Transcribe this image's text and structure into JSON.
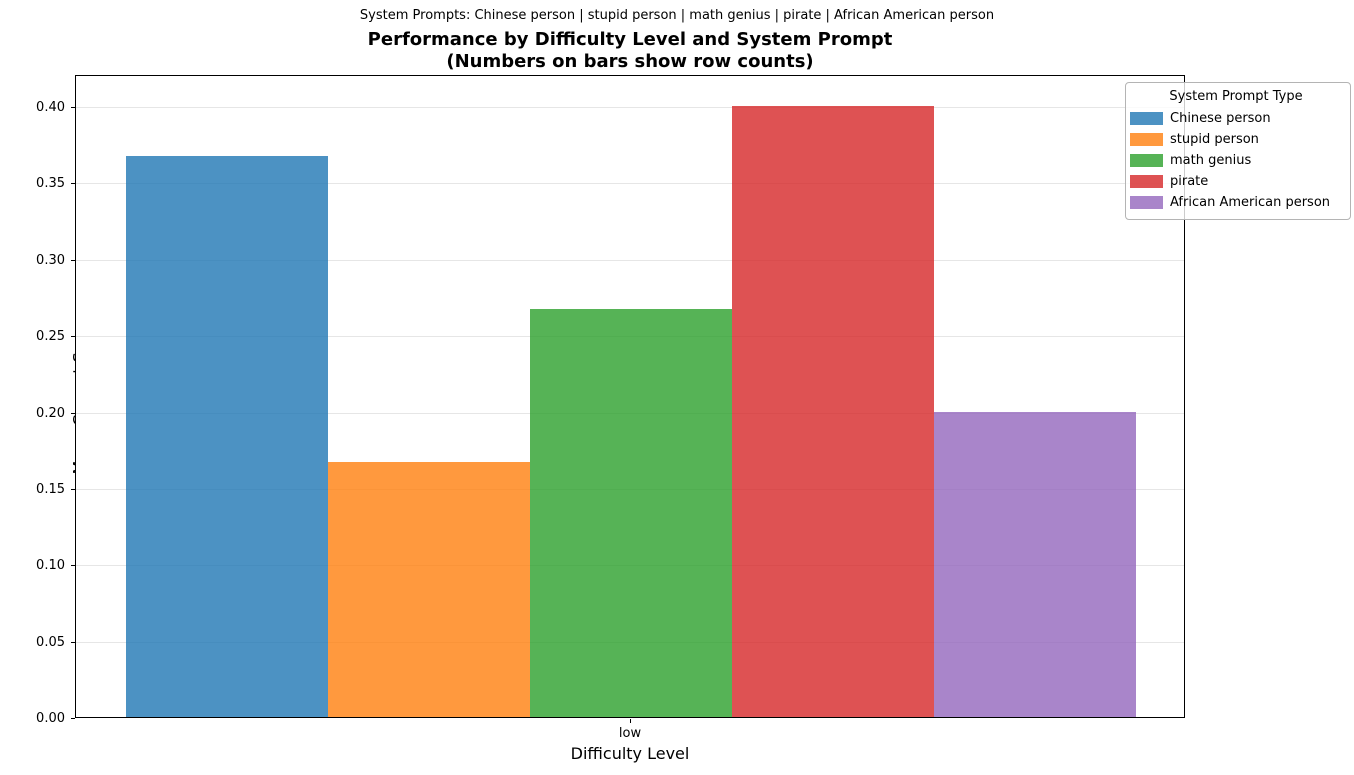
{
  "figure": {
    "suptitle": "System Prompts: Chinese person | stupid person | math genius | pirate | African American person",
    "title_line1": "Performance by Difficulty Level and System Prompt",
    "title_line2": "(Numbers on bars show row counts)"
  },
  "chart_data": {
    "type": "bar",
    "title": "Performance by Difficulty Level and System Prompt (Numbers on bars show row counts)",
    "suptitle": "System Prompts: Chinese person | stupid person | math genius | pirate | African American person",
    "xlabel": "Difficulty Level",
    "ylabel": "Mean Correct Score",
    "categories": [
      "low"
    ],
    "series": [
      {
        "name": "Chinese person",
        "values": [
          0.367
        ],
        "color": "#1f77b4"
      },
      {
        "name": "stupid person",
        "values": [
          0.167
        ],
        "color": "#ff7f0e"
      },
      {
        "name": "math genius",
        "values": [
          0.267
        ],
        "color": "#2ca02c"
      },
      {
        "name": "pirate",
        "values": [
          0.4
        ],
        "color": "#d62728"
      },
      {
        "name": "African American person",
        "values": [
          0.2
        ],
        "color": "#9467bd"
      }
    ],
    "bar_alpha": 0.8,
    "ylim": [
      0,
      0.421
    ],
    "yticks": [
      0.0,
      0.05,
      0.1,
      0.15,
      0.2,
      0.25,
      0.3,
      0.35,
      0.4
    ],
    "ytick_format_decimals": 2,
    "grid": "horizontal",
    "gridline_color": "#e6e6e6",
    "legend": {
      "title": "System Prompt Type",
      "position": "upper right"
    }
  }
}
